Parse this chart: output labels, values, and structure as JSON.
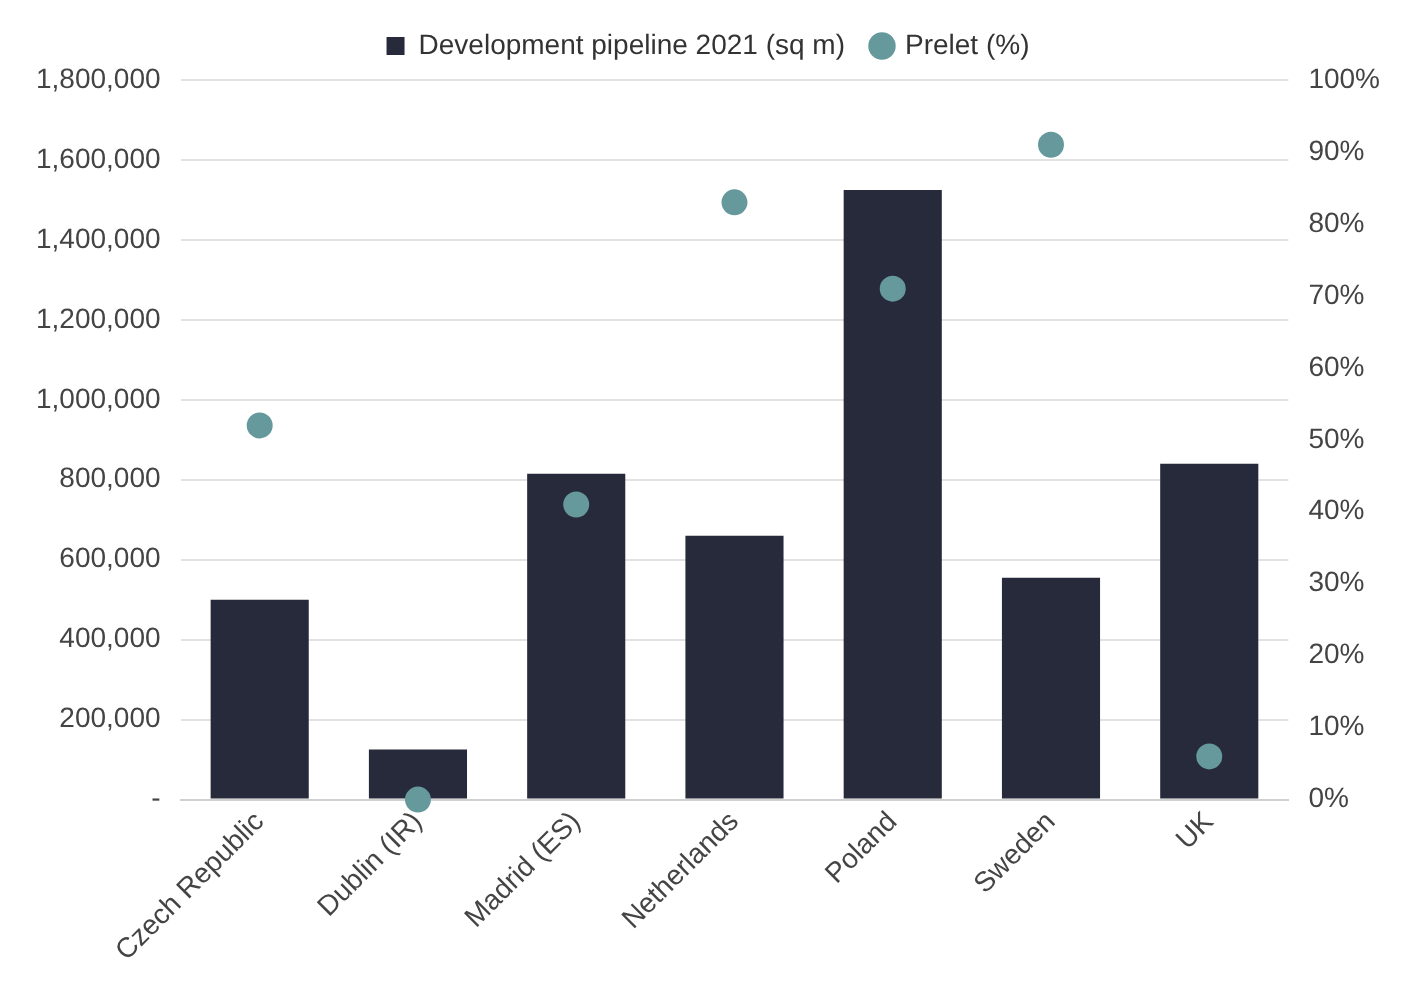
{
  "chart_data": {
    "type": "bar",
    "categories": [
      "Czech Republic",
      "Dublin (IR)",
      "Madrid (ES)",
      "Netherlands",
      "Poland",
      "Sweden",
      "UK"
    ],
    "series": [
      {
        "name": "Development pipeline 2021 (sq m)",
        "color": "#262a3b",
        "values": [
          500000,
          125000,
          815000,
          660000,
          1525000,
          555000,
          840000
        ]
      },
      {
        "name": "Prelet (%)",
        "type": "scatter",
        "axis": "y2",
        "color": "#66999c",
        "values": [
          52,
          0,
          41,
          83,
          71,
          91,
          6
        ]
      }
    ],
    "ylim": [
      0,
      1800000
    ],
    "yticks": [
      {
        "value": 0,
        "label": "-"
      },
      {
        "value": 200000,
        "label": "200,000"
      },
      {
        "value": 400000,
        "label": "400,000"
      },
      {
        "value": 600000,
        "label": "600,000"
      },
      {
        "value": 800000,
        "label": "800,000"
      },
      {
        "value": 1000000,
        "label": "1,000,000"
      },
      {
        "value": 1200000,
        "label": "1,200,000"
      },
      {
        "value": 1400000,
        "label": "1,400,000"
      },
      {
        "value": 1600000,
        "label": "1,600,000"
      },
      {
        "value": 1800000,
        "label": "1,800,000"
      }
    ],
    "y2lim": [
      0,
      100
    ],
    "y2ticks": [
      {
        "value": 0,
        "label": "0%"
      },
      {
        "value": 10,
        "label": "10%"
      },
      {
        "value": 20,
        "label": "20%"
      },
      {
        "value": 30,
        "label": "30%"
      },
      {
        "value": 40,
        "label": "40%"
      },
      {
        "value": 50,
        "label": "50%"
      },
      {
        "value": 60,
        "label": "60%"
      },
      {
        "value": 70,
        "label": "70%"
      },
      {
        "value": 80,
        "label": "80%"
      },
      {
        "value": 90,
        "label": "90%"
      },
      {
        "value": 100,
        "label": "100%"
      }
    ],
    "grid": "y",
    "legend": "top",
    "marker": "circle"
  }
}
